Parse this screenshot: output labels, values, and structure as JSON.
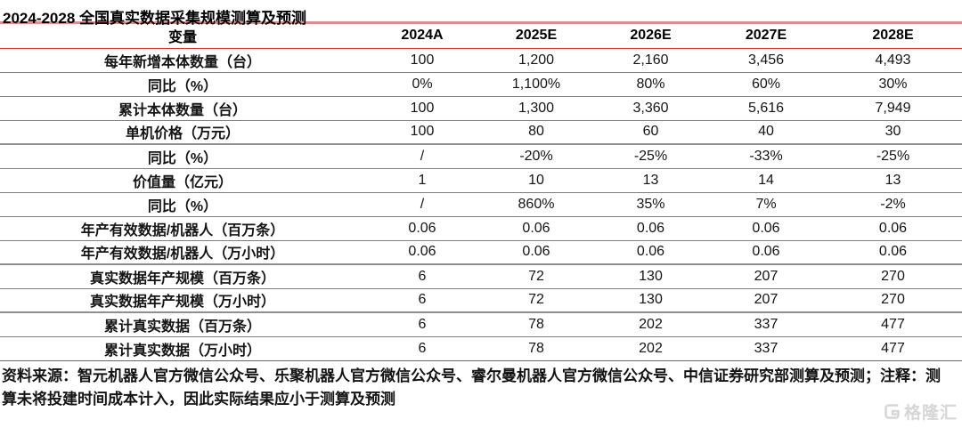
{
  "title": "2024-2028 全国真实数据采集规模测算及预测",
  "table": {
    "header": [
      "变量",
      "2024A",
      "2025E",
      "2026E",
      "2027E",
      "2028E"
    ],
    "rows": [
      {
        "label": "每年新增本体数量（台）",
        "values": [
          "100",
          "1,200",
          "2,160",
          "3,456",
          "4,493"
        ]
      },
      {
        "label": "同比（%）",
        "values": [
          "0%",
          "1,100%",
          "80%",
          "60%",
          "30%"
        ]
      },
      {
        "label": "累计本体数量（台）",
        "values": [
          "100",
          "1,300",
          "3,360",
          "5,616",
          "7,949"
        ]
      },
      {
        "label": "单机价格（万元）",
        "values": [
          "100",
          "80",
          "60",
          "40",
          "30"
        ]
      },
      {
        "label": "同比（%）",
        "values": [
          "/",
          "-20%",
          "-25%",
          "-33%",
          "-25%"
        ]
      },
      {
        "label": "价值量（亿元）",
        "values": [
          "1",
          "10",
          "13",
          "14",
          "13"
        ]
      },
      {
        "label": "同比（%）",
        "values": [
          "/",
          "860%",
          "35%",
          "7%",
          "-2%"
        ]
      },
      {
        "label": "年产有效数据/机器人（百万条）",
        "values": [
          "0.06",
          "0.06",
          "0.06",
          "0.06",
          "0.06"
        ]
      },
      {
        "label": "年产有效数据/机器人（万小时）",
        "values": [
          "0.06",
          "0.06",
          "0.06",
          "0.06",
          "0.06"
        ]
      },
      {
        "label": "真实数据年产规模（百万条）",
        "values": [
          "6",
          "72",
          "130",
          "207",
          "270"
        ]
      },
      {
        "label": "真实数据年产规模（万小时）",
        "values": [
          "6",
          "72",
          "130",
          "207",
          "270"
        ]
      },
      {
        "label": "累计真实数据（百万条）",
        "values": [
          "6",
          "78",
          "202",
          "337",
          "477"
        ]
      },
      {
        "label": "累计真实数据（万小时）",
        "values": [
          "6",
          "78",
          "202",
          "337",
          "477"
        ]
      }
    ]
  },
  "footer": {
    "line1": "资料来源：智元机器人官方微信公众号、乐聚机器人官方微信公众号、睿尔曼机器人官方微信公众号、中信证券研究部测算及预测；注释：测",
    "line2": "算未将投建时间成本计入，因此实际结果应小于测算及预测"
  },
  "watermark": {
    "text": "格隆汇"
  },
  "colors": {
    "accent_red": "#dd3333",
    "soft_red_divider": "#d98f91",
    "separator_gray": "#7d7d7d",
    "group_separator_gray": "#8f8f8f",
    "watermark_gray": "#d4d4d4",
    "text_black": "#111111"
  }
}
